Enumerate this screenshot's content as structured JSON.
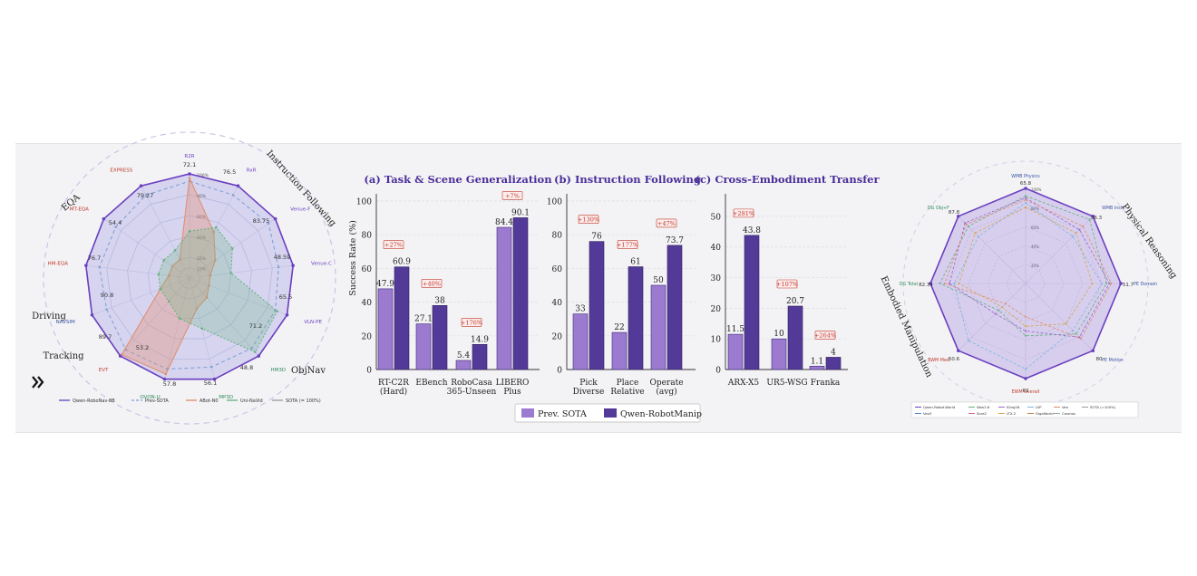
{
  "chart_data": [
    {
      "type": "radar",
      "group_labels": [
        "EQA",
        "Instruction Following",
        "ObjNav",
        "Tracking",
        "Driving"
      ],
      "axes": [
        "R2R",
        "RxR",
        "Venue-F",
        "Venue-C",
        "VLN-PE",
        "HM3D",
        "MP3D",
        "OVON-U",
        "EVT",
        "NAVSIM",
        "HM-EQA",
        "MT-EQA",
        "EXPRESS"
      ],
      "ring_labels": [
        "100%",
        "80%",
        "60%",
        "40%",
        "20%",
        "10%"
      ],
      "value_labels": [
        "72.1",
        "76.5",
        "83.75",
        "48.59",
        "65.5",
        "71.2",
        "48.8",
        "56.1",
        "57.8",
        "53.2",
        "89.7",
        "90.8",
        "76.7",
        "54.4",
        "79.27"
      ],
      "legend": [
        "Qwen-RoboNav-8B",
        "Prev-SOTA",
        "ABot-N0",
        "Uni-NaVid",
        "SOTA (= 100%)"
      ],
      "series": [
        {
          "name": "Qwen-RoboNav-8B",
          "color": "#6a3fbf",
          "values": [
            1.0,
            1.0,
            1.0,
            1.0,
            1.0,
            1.0,
            1.0,
            1.0,
            1.0,
            1.0,
            1.0,
            1.0,
            1.0
          ]
        },
        {
          "name": "Prev-SOTA",
          "color": "#7b9fd4",
          "values": [
            0.93,
            0.9,
            0.92,
            0.86,
            0.88,
            0.9,
            0.88,
            0.9,
            0.92,
            0.85,
            0.87,
            0.86,
            0.9
          ]
        },
        {
          "name": "ABot-N0",
          "color": "#e08a6a",
          "values": [
            0.96,
            0.5,
            0.3,
            0.2,
            0.2,
            0.25,
            0.3,
            0.95,
            0.98,
            0.3,
            0.2,
            0.2,
            0.2
          ]
        },
        {
          "name": "Uni-NaVid",
          "color": "#5fb27a",
          "values": [
            0.45,
            0.55,
            0.5,
            0.4,
            0.9,
            0.95,
            0.5,
            0.4,
            0.3,
            0.3,
            0.3,
            0.3,
            0.3
          ]
        }
      ]
    },
    {
      "type": "bar",
      "title": "(a) Task & Scene Generalization",
      "ylabel": "Success Rate (%)",
      "ylim": [
        0,
        100
      ],
      "yticks": [
        0,
        20,
        40,
        60,
        80,
        100
      ],
      "categories": [
        "RT-C2R\n(Hard)",
        "EBench",
        "RoboCasa\n365-Unseen",
        "LIBERO\nPlus"
      ],
      "series": [
        {
          "name": "Prev. SOTA",
          "values": [
            47.9,
            27.1,
            5.4,
            84.4
          ]
        },
        {
          "name": "Qwen-RobotManip",
          "values": [
            60.9,
            38,
            14.9,
            90.1
          ]
        }
      ],
      "gains": [
        "+27%",
        "+40%",
        "+176%",
        "+7%"
      ]
    },
    {
      "type": "bar",
      "title": "(b) Instruction Following",
      "ylim": [
        0,
        100
      ],
      "yticks": [
        0,
        20,
        40,
        60,
        80,
        100
      ],
      "categories": [
        "Pick\nDiverse",
        "Place\nRelative",
        "Operate\n(avg)"
      ],
      "series": [
        {
          "name": "Prev. SOTA",
          "values": [
            33,
            22,
            50
          ]
        },
        {
          "name": "Qwen-RobotManip",
          "values": [
            76,
            61,
            73.7
          ]
        }
      ],
      "gains": [
        "+130%",
        "+177%",
        "+47%"
      ]
    },
    {
      "type": "bar",
      "title": "(c) Cross-Embodiment Transfer",
      "ylim": [
        0,
        55
      ],
      "yticks": [
        0,
        10,
        20,
        30,
        40,
        50
      ],
      "categories": [
        "ARX-X5",
        "UR5-WSG",
        "Franka"
      ],
      "series": [
        {
          "name": "Prev. SOTA",
          "values": [
            11.5,
            10,
            1.1
          ]
        },
        {
          "name": "Qwen-RobotManip",
          "values": [
            43.8,
            20.7,
            4
          ]
        }
      ],
      "gains": [
        "+281%",
        "+107%",
        "+264%"
      ]
    },
    {
      "type": "radar",
      "group_labels": [
        "Physical Reasoning",
        "Embodied Manipulation"
      ],
      "axes": [
        "WMB Physics",
        "WMB Instr.",
        "PE Domain",
        "PE Motion",
        "EWM Overall",
        "EWM Med",
        "DG Total",
        "DG Obj+F"
      ],
      "ring_labels": [
        "100%",
        "80%",
        "60%",
        "40%",
        "20%"
      ],
      "value_labels": [
        "65.8",
        "56.3",
        "51.7",
        "80",
        "62",
        "50.6",
        "82.34",
        "87.8"
      ],
      "legend": [
        "Qwen-Robot-World",
        "Wan2.6",
        "Kling26",
        "LVP",
        "Veo",
        "SOTA (=100%)",
        "Veo3",
        "Sora2",
        "LTX-2",
        "GigaWorld",
        "Cosmos"
      ],
      "series": [
        {
          "name": "Qwen-Robot-World",
          "color": "#6a3fbf",
          "values": [
            1.0,
            1.0,
            1.0,
            1.0,
            1.0,
            1.0,
            1.0,
            1.0
          ]
        },
        {
          "name": "Wan2.6",
          "color": "#5fb27a",
          "values": [
            0.92,
            0.95,
            0.85,
            0.75,
            0.55,
            0.4,
            0.9,
            0.85
          ]
        },
        {
          "name": "Kling26",
          "color": "#9a66cc",
          "values": [
            0.9,
            0.8,
            0.88,
            0.8,
            0.5,
            0.45,
            0.8,
            0.9
          ]
        },
        {
          "name": "LVP",
          "color": "#7bb6e0",
          "values": [
            0.85,
            0.7,
            0.8,
            0.7,
            0.9,
            0.85,
            0.75,
            0.7
          ]
        },
        {
          "name": "Veo",
          "color": "#e08a6a",
          "values": [
            0.88,
            0.85,
            0.9,
            0.82,
            0.35,
            0.3,
            0.85,
            0.88
          ]
        },
        {
          "name": "GigaWorld",
          "color": "#d6a64a",
          "values": [
            0.8,
            0.75,
            0.7,
            0.6,
            0.45,
            0.35,
            0.7,
            0.75
          ]
        }
      ]
    }
  ],
  "legend_manip": [
    "Prev. SOTA",
    "Qwen-RobotManip"
  ],
  "nav_icon": "double-chevron-right-icon",
  "colors": {
    "prev": "#9b7ad0",
    "qwen": "#533a98",
    "gain": "#c0392b",
    "qwen_nav": "#6a3fbf"
  }
}
